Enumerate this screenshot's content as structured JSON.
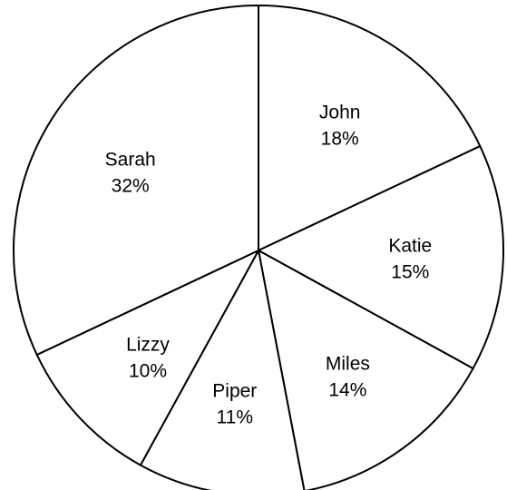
{
  "chart_data": {
    "type": "pie",
    "start": "top",
    "direction": "clockwise",
    "slices": [
      {
        "name": "John",
        "value": 18,
        "label": "18%"
      },
      {
        "name": "Katie",
        "value": 15,
        "label": "15%"
      },
      {
        "name": "Miles",
        "value": 14,
        "label": "14%"
      },
      {
        "name": "Piper",
        "value": 11,
        "label": "11%"
      },
      {
        "name": "Lizzy",
        "value": 10,
        "label": "10%"
      },
      {
        "name": "Sarah",
        "value": 32,
        "label": "32%"
      }
    ],
    "colors": {
      "fill": "#ffffff",
      "stroke": "#000000",
      "text": "#000000"
    }
  }
}
